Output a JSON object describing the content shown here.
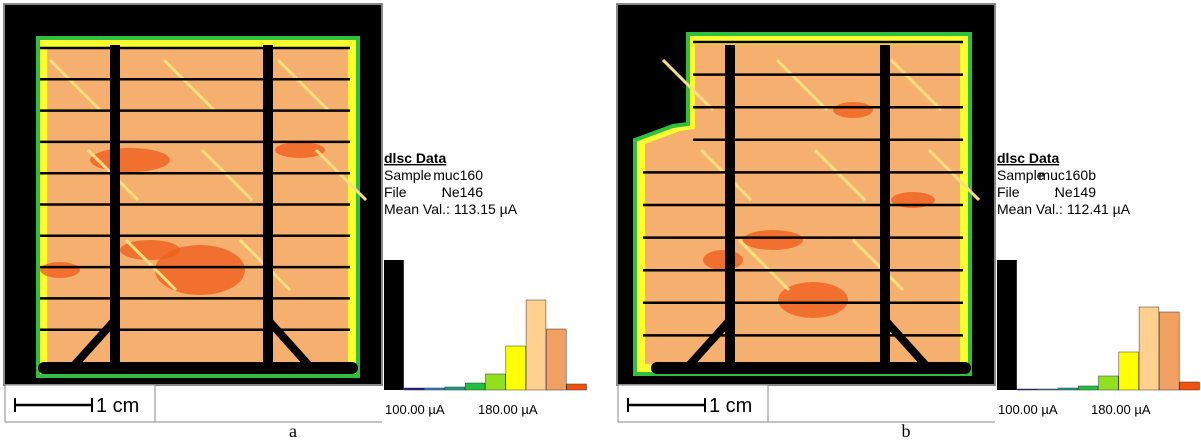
{
  "panels": [
    {
      "caption": "a",
      "scale_label": "1 cm",
      "info": {
        "title": "dlsc Data",
        "sample_label": "Sample",
        "separator": ":",
        "sample": "muc160",
        "file_label": "File",
        "file": "Ne146",
        "mean_label": "Mean Val.:",
        "mean": "113.15  µA"
      },
      "histogram": {
        "type": "bar",
        "ylim": [
          0,
          130
        ],
        "colors": [
          "#000000",
          "#1a1aa0",
          "#2a7fd0",
          "#1fa08a",
          "#22c040",
          "#90e020",
          "#ffff00",
          "#ffd090",
          "#f0a060",
          "#f05010"
        ],
        "values": [
          130,
          2,
          2,
          3,
          7,
          16,
          44,
          90,
          61,
          6
        ],
        "x_labels": [
          "100.00 µA",
          "180.00 µA"
        ]
      }
    },
    {
      "caption": "b",
      "scale_label": "1 cm",
      "info": {
        "title": "dlsc Data",
        "sample_label": "Sample",
        "separator": ":",
        "sample": "muc160b",
        "file_label": "File",
        "file": "Ne149",
        "mean_label": "Mean Val.:",
        "mean": "112.41  µA"
      },
      "histogram": {
        "type": "bar",
        "ylim": [
          0,
          130
        ],
        "colors": [
          "#000000",
          "#1a1aa0",
          "#2a7fd0",
          "#1fa08a",
          "#22c040",
          "#90e020",
          "#ffff00",
          "#ffd090",
          "#f0a060",
          "#f05010"
        ],
        "values": [
          130,
          1,
          1,
          2,
          4,
          14,
          38,
          83,
          78,
          8
        ],
        "x_labels": [
          "100.00 µA",
          "180.00 µA"
        ]
      }
    }
  ]
}
